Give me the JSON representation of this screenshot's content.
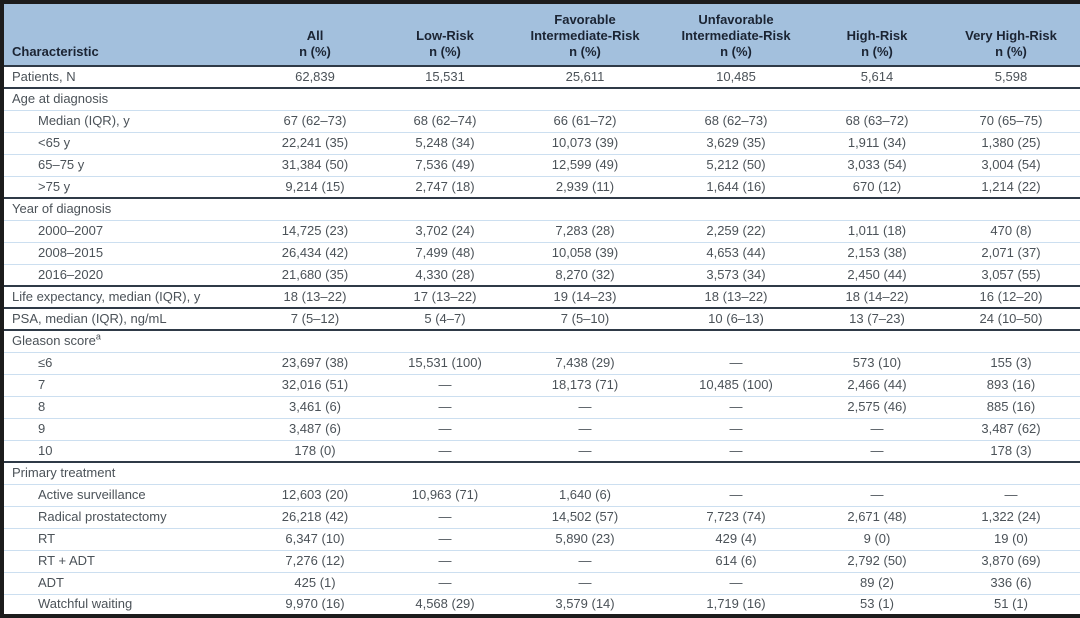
{
  "colors": {
    "header_bg": "#a3c0dd",
    "header_text": "#1b2433",
    "body_text": "#4b5258",
    "separator_light": "#ccdff0",
    "separator_dark": "#2f3a47",
    "outer_border": "#1c1c1c"
  },
  "table": {
    "columns": [
      {
        "title": "Characteristic",
        "sub": ""
      },
      {
        "title": "All",
        "sub": "n (%)"
      },
      {
        "title": "Low-Risk",
        "sub": "n (%)"
      },
      {
        "title": "Favorable Intermediate-Risk",
        "sub": "n (%)"
      },
      {
        "title": "Unfavorable Intermediate-Risk",
        "sub": "n (%)"
      },
      {
        "title": "High-Risk",
        "sub": "n (%)"
      },
      {
        "title": "Very High-Risk",
        "sub": "n (%)"
      }
    ],
    "rows": [
      {
        "label": "Patients, N",
        "indent": false,
        "section": false,
        "border": "light",
        "values": [
          "62,839",
          "15,531",
          "25,611",
          "10,485",
          "5,614",
          "5,598"
        ]
      },
      {
        "label": "Age at diagnosis",
        "indent": false,
        "section": true,
        "border": "dark",
        "values": [
          "",
          "",
          "",
          "",
          "",
          ""
        ]
      },
      {
        "label": "Median (IQR), y",
        "indent": true,
        "section": false,
        "border": "light",
        "values": [
          "67 (62–73)",
          "68 (62–74)",
          "66 (61–72)",
          "68 (62–73)",
          "68 (63–72)",
          "70 (65–75)"
        ]
      },
      {
        "label": "<65 y",
        "indent": true,
        "section": false,
        "border": "light",
        "values": [
          "22,241 (35)",
          "5,248 (34)",
          "10,073 (39)",
          "3,629 (35)",
          "1,911 (34)",
          "1,380 (25)"
        ]
      },
      {
        "label": "65–75 y",
        "indent": true,
        "section": false,
        "border": "light",
        "values": [
          "31,384 (50)",
          "7,536 (49)",
          "12,599 (49)",
          "5,212 (50)",
          "3,033 (54)",
          "3,004 (54)"
        ]
      },
      {
        "label": ">75 y",
        "indent": true,
        "section": false,
        "border": "light",
        "values": [
          "9,214 (15)",
          "2,747 (18)",
          "2,939 (11)",
          "1,644 (16)",
          "670 (12)",
          "1,214 (22)"
        ]
      },
      {
        "label": "Year of diagnosis",
        "indent": false,
        "section": true,
        "border": "dark",
        "values": [
          "",
          "",
          "",
          "",
          "",
          ""
        ]
      },
      {
        "label": "2000–2007",
        "indent": true,
        "section": false,
        "border": "light",
        "values": [
          "14,725 (23)",
          "3,702 (24)",
          "7,283 (28)",
          "2,259 (22)",
          "1,011 (18)",
          "470 (8)"
        ]
      },
      {
        "label": "2008–2015",
        "indent": true,
        "section": false,
        "border": "light",
        "values": [
          "26,434 (42)",
          "7,499 (48)",
          "10,058 (39)",
          "4,653 (44)",
          "2,153 (38)",
          "2,071 (37)"
        ]
      },
      {
        "label": "2016–2020",
        "indent": true,
        "section": false,
        "border": "light",
        "values": [
          "21,680 (35)",
          "4,330 (28)",
          "8,270 (32)",
          "3,573 (34)",
          "2,450 (44)",
          "3,057 (55)"
        ]
      },
      {
        "label": "Life expectancy, median (IQR), y",
        "indent": false,
        "section": false,
        "border": "dark",
        "values": [
          "18 (13–22)",
          "17 (13–22)",
          "19 (14–23)",
          "18 (13–22)",
          "18 (14–22)",
          "16 (12–20)"
        ]
      },
      {
        "label": "PSA, median (IQR), ng/mL",
        "indent": false,
        "section": false,
        "border": "dark",
        "values": [
          "7 (5–12)",
          "5 (4–7)",
          "7 (5–10)",
          "10 (6–13)",
          "13 (7–23)",
          "24 (10–50)"
        ]
      },
      {
        "label": "Gleason score",
        "sup": "a",
        "indent": false,
        "section": true,
        "border": "dark",
        "values": [
          "",
          "",
          "",
          "",
          "",
          ""
        ]
      },
      {
        "label": "≤6",
        "indent": true,
        "section": false,
        "border": "light",
        "values": [
          "23,697 (38)",
          "15,531 (100)",
          "7,438 (29)",
          "—",
          "573 (10)",
          "155 (3)"
        ]
      },
      {
        "label": "7",
        "indent": true,
        "section": false,
        "border": "light",
        "values": [
          "32,016 (51)",
          "—",
          "18,173 (71)",
          "10,485 (100)",
          "2,466 (44)",
          "893 (16)"
        ]
      },
      {
        "label": "8",
        "indent": true,
        "section": false,
        "border": "light",
        "values": [
          "3,461 (6)",
          "—",
          "—",
          "—",
          "2,575 (46)",
          "885 (16)"
        ]
      },
      {
        "label": "9",
        "indent": true,
        "section": false,
        "border": "light",
        "values": [
          "3,487 (6)",
          "—",
          "—",
          "—",
          "—",
          "3,487 (62)"
        ]
      },
      {
        "label": "10",
        "indent": true,
        "section": false,
        "border": "light",
        "values": [
          "178 (0)",
          "—",
          "—",
          "—",
          "—",
          "178 (3)"
        ]
      },
      {
        "label": "Primary treatment",
        "indent": false,
        "section": true,
        "border": "dark",
        "values": [
          "",
          "",
          "",
          "",
          "",
          ""
        ]
      },
      {
        "label": "Active surveillance",
        "indent": true,
        "section": false,
        "border": "light",
        "values": [
          "12,603 (20)",
          "10,963 (71)",
          "1,640 (6)",
          "—",
          "—",
          "—"
        ]
      },
      {
        "label": "Radical prostatectomy",
        "indent": true,
        "section": false,
        "border": "light",
        "values": [
          "26,218 (42)",
          "—",
          "14,502 (57)",
          "7,723 (74)",
          "2,671 (48)",
          "1,322 (24)"
        ]
      },
      {
        "label": "RT",
        "indent": true,
        "section": false,
        "border": "light",
        "values": [
          "6,347 (10)",
          "—",
          "5,890 (23)",
          "429 (4)",
          "9 (0)",
          "19 (0)"
        ]
      },
      {
        "label": "RT + ADT",
        "indent": true,
        "section": false,
        "border": "light",
        "values": [
          "7,276 (12)",
          "—",
          "—",
          "614 (6)",
          "2,792 (50)",
          "3,870 (69)"
        ]
      },
      {
        "label": "ADT",
        "indent": true,
        "section": false,
        "border": "light",
        "values": [
          "425 (1)",
          "—",
          "—",
          "—",
          "89 (2)",
          "336 (6)"
        ]
      },
      {
        "label": "Watchful waiting",
        "indent": true,
        "section": false,
        "border": "light",
        "values": [
          "9,970 (16)",
          "4,568 (29)",
          "3,579 (14)",
          "1,719 (16)",
          "53 (1)",
          "51 (1)"
        ]
      }
    ]
  }
}
